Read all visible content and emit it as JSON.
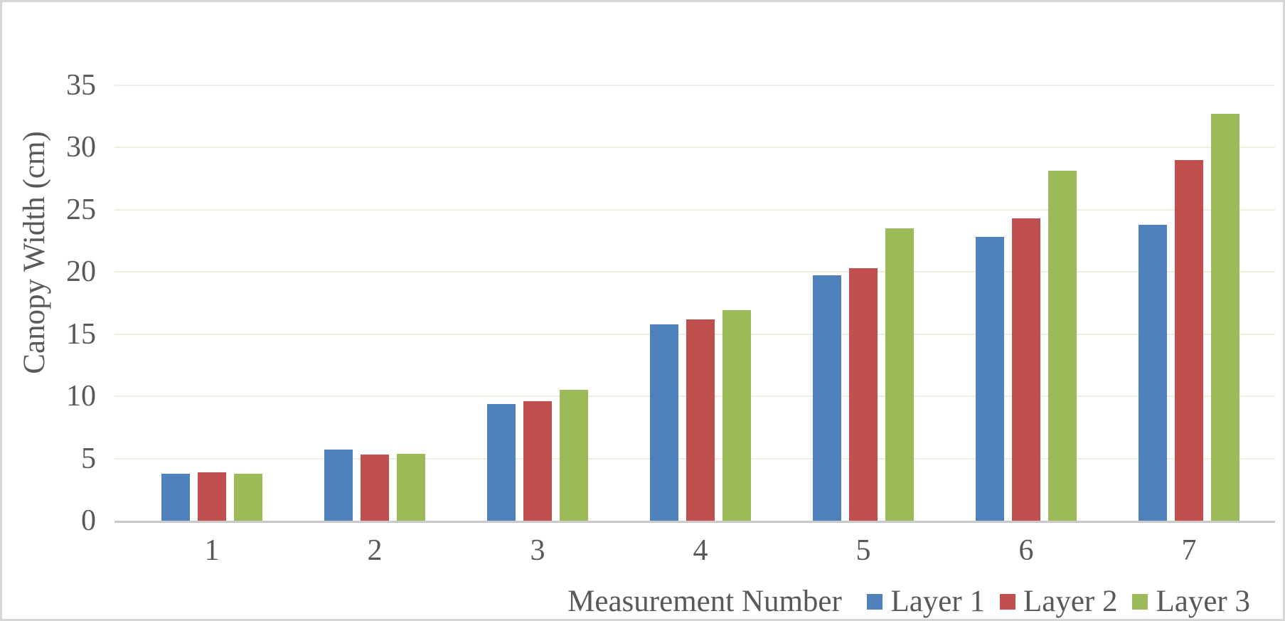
{
  "chart_data": {
    "type": "bar",
    "title": "",
    "xlabel": "Measurement Number",
    "ylabel": "Canopy Width (cm)",
    "categories": [
      "1",
      "2",
      "3",
      "4",
      "5",
      "6",
      "7"
    ],
    "series": [
      {
        "name": "Layer 1",
        "color": "#4F81BD",
        "values": [
          3.8,
          5.7,
          9.4,
          15.8,
          19.7,
          22.8,
          23.8
        ]
      },
      {
        "name": "Layer 2",
        "color": "#C0504D",
        "values": [
          3.9,
          5.3,
          9.6,
          16.2,
          20.3,
          24.3,
          29.0
        ]
      },
      {
        "name": "Layer 3",
        "color": "#9BBB59",
        "values": [
          3.8,
          5.4,
          10.5,
          16.9,
          23.5,
          28.1,
          32.7
        ]
      }
    ],
    "ylim": [
      0,
      35
    ],
    "y_ticks": [
      0,
      5,
      10,
      15,
      20,
      25,
      30,
      35
    ],
    "grid": true,
    "legend_position": "bottom-right",
    "gridline_color": "#F0EDE1",
    "axis_line_color": "#C8C8C8",
    "text_color": "#595959"
  }
}
